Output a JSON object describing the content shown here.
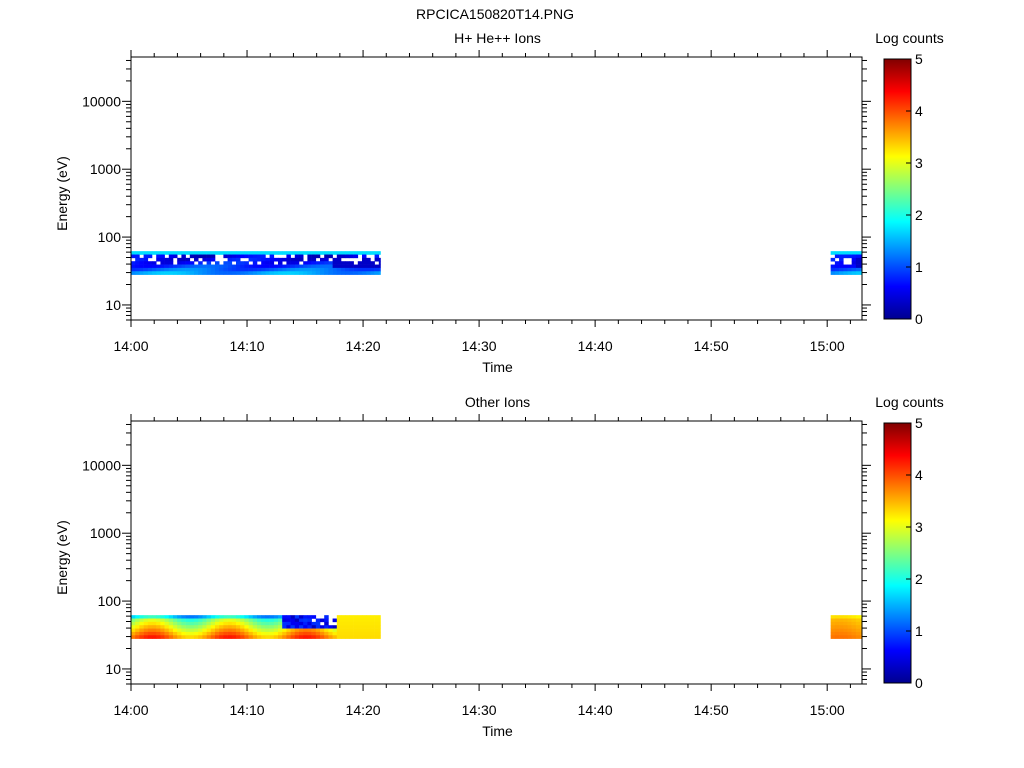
{
  "figure_title": "RPCICA150820T14.PNG",
  "chart_data": [
    {
      "type": "heatmap",
      "title": "H+ He++ Ions",
      "xlabel": "Time",
      "ylabel": "Energy (eV)",
      "x_ticks": [
        "14:00",
        "14:10",
        "14:20",
        "14:30",
        "14:40",
        "14:50",
        "15:00"
      ],
      "x_range": [
        "14:00",
        "15:03"
      ],
      "y_scale": "log",
      "y_ticks": [
        "10",
        "100",
        "1000",
        "10000"
      ],
      "y_range": [
        6,
        45000
      ],
      "colorbar": {
        "label": "Log counts",
        "ticks": [
          "0",
          "1",
          "2",
          "3",
          "4",
          "5"
        ],
        "range": [
          0,
          5
        ],
        "colormap": "jet"
      },
      "data_blocks": [
        {
          "t_start": "14:00",
          "t_end": "14:21.5",
          "e_min": 28,
          "e_max": 62,
          "typical_log_counts": [
            0,
            1.8
          ],
          "note_gaps": true
        },
        {
          "t_start": "15:00.3",
          "t_end": "15:03",
          "e_min": 28,
          "e_max": 62,
          "typical_log_counts": [
            0,
            1.8
          ],
          "note_gaps": true
        }
      ]
    },
    {
      "type": "heatmap",
      "title": "Other Ions",
      "xlabel": "Time",
      "ylabel": "Energy (eV)",
      "x_ticks": [
        "14:00",
        "14:10",
        "14:20",
        "14:30",
        "14:40",
        "14:50",
        "15:00"
      ],
      "x_range": [
        "14:00",
        "15:03"
      ],
      "y_scale": "log",
      "y_ticks": [
        "10",
        "100",
        "1000",
        "10000"
      ],
      "y_range": [
        6,
        45000
      ],
      "colorbar": {
        "label": "Log counts",
        "ticks": [
          "0",
          "1",
          "2",
          "3",
          "4",
          "5"
        ],
        "range": [
          0,
          5
        ],
        "colormap": "jet"
      },
      "data_blocks": [
        {
          "t_start": "14:00",
          "t_end": "14:21.5",
          "e_min": 28,
          "e_max": 62,
          "typical_log_counts": [
            0.3,
            4.2
          ],
          "note_gaps": true
        },
        {
          "t_start": "15:00.3",
          "t_end": "15:03",
          "e_min": 28,
          "e_max": 62,
          "typical_log_counts": [
            2.8,
            3.8
          ],
          "note_gaps": false
        }
      ]
    }
  ]
}
